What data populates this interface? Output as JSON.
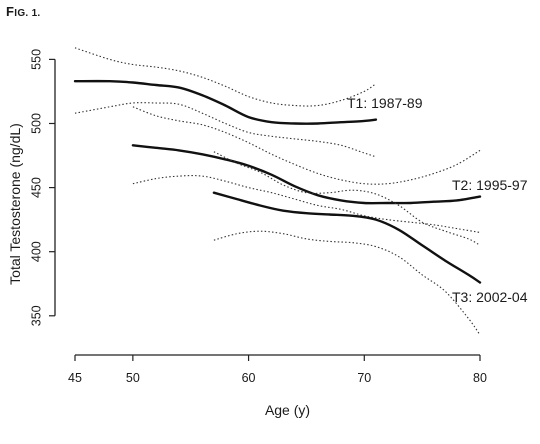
{
  "figure_label": {
    "prefix": "F",
    "rest": "ig. 1."
  },
  "chart_data": {
    "type": "line",
    "title": "",
    "xlabel": "Age (y)",
    "ylabel": "Total Testosterone (ng/dL)",
    "xlim": [
      45,
      80
    ],
    "ylim": [
      328,
      562
    ],
    "xticks": [
      45,
      50,
      60,
      70,
      80
    ],
    "yticks": [
      350,
      400,
      450,
      500,
      550
    ],
    "grid": false,
    "legend": "none",
    "series": [
      {
        "name": "T1: 1987-89",
        "x": [
          45,
          48,
          50,
          52,
          54,
          56,
          58,
          60,
          62,
          64,
          66,
          68,
          70,
          71
        ],
        "y": [
          533,
          533,
          532,
          530,
          528,
          522,
          514,
          505,
          501,
          500,
          500,
          501,
          502,
          503
        ],
        "upper": [
          559,
          550,
          546,
          544,
          541,
          536,
          529,
          521,
          516,
          514,
          514,
          518,
          525,
          531
        ],
        "lower": [
          508,
          513,
          516,
          516,
          515,
          508,
          500,
          493,
          490,
          488,
          486,
          483,
          477,
          474
        ]
      },
      {
        "name": "T2: 1995-97",
        "x": [
          50,
          52,
          54,
          56,
          58,
          60,
          62,
          64,
          66,
          68,
          70,
          72,
          74,
          76,
          78,
          80
        ],
        "y": [
          483,
          481,
          479,
          476,
          472,
          467,
          460,
          451,
          444,
          440,
          438,
          438,
          438,
          439,
          440,
          443
        ],
        "upper": [
          513,
          506,
          502,
          499,
          493,
          485,
          476,
          468,
          461,
          456,
          453,
          453,
          456,
          461,
          468,
          479
        ],
        "lower": [
          453,
          457,
          459,
          459,
          455,
          450,
          446,
          441,
          436,
          433,
          428,
          425,
          423,
          421,
          418,
          415
        ]
      },
      {
        "name": "T3: 2002-04",
        "x": [
          57,
          59,
          61,
          63,
          65,
          67,
          69,
          71,
          73,
          75,
          77,
          79,
          80
        ],
        "y": [
          446,
          441,
          436,
          432,
          430,
          429,
          428,
          425,
          417,
          405,
          393,
          382,
          376
        ],
        "upper": [
          478,
          469,
          462,
          452,
          446,
          446,
          448,
          445,
          436,
          423,
          416,
          410,
          405
        ],
        "lower": [
          409,
          414,
          416,
          414,
          410,
          408,
          407,
          404,
          396,
          382,
          369,
          348,
          335
        ]
      }
    ]
  }
}
